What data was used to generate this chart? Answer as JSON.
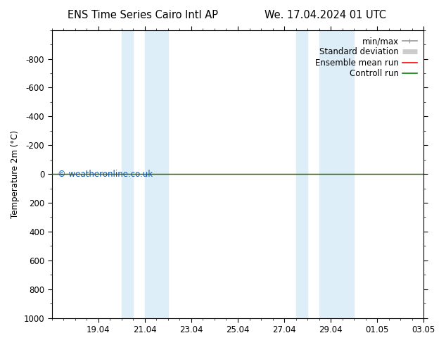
{
  "title_left": "ENS Time Series Cairo Intl AP",
  "title_right": "We. 17.04.2024 01 UTC",
  "ylabel": "Temperature 2m (°C)",
  "ylim_bottom": 1000,
  "ylim_top": -1000,
  "yticks": [
    -800,
    -600,
    -400,
    -200,
    0,
    200,
    400,
    600,
    800,
    1000
  ],
  "xtick_labels": [
    "19.04",
    "21.04",
    "23.04",
    "25.04",
    "27.04",
    "29.04",
    "01.05",
    "03.05"
  ],
  "xtick_positions": [
    2,
    4,
    6,
    8,
    10,
    12,
    14,
    16
  ],
  "xlim": [
    0,
    16
  ],
  "shade_bands": [
    [
      3.0,
      3.5
    ],
    [
      4.0,
      5.0
    ],
    [
      10.5,
      11.0
    ],
    [
      11.5,
      13.0
    ]
  ],
  "shade_color": "#ddeef8",
  "control_run_color": "#008000",
  "ensemble_mean_color": "#ff0000",
  "legend_items": [
    {
      "label": "min/max",
      "color": "#999999",
      "lw": 1.2
    },
    {
      "label": "Standard deviation",
      "color": "#cccccc",
      "lw": 5
    },
    {
      "label": "Ensemble mean run",
      "color": "#ff0000",
      "lw": 1.2
    },
    {
      "label": "Controll run",
      "color": "#008000",
      "lw": 1.2
    }
  ],
  "watermark": "© weatheronline.co.uk",
  "watermark_color": "#1155aa",
  "background_color": "#ffffff",
  "title_fontsize": 10.5,
  "tick_fontsize": 8.5,
  "ylabel_fontsize": 8.5,
  "legend_fontsize": 8.5
}
